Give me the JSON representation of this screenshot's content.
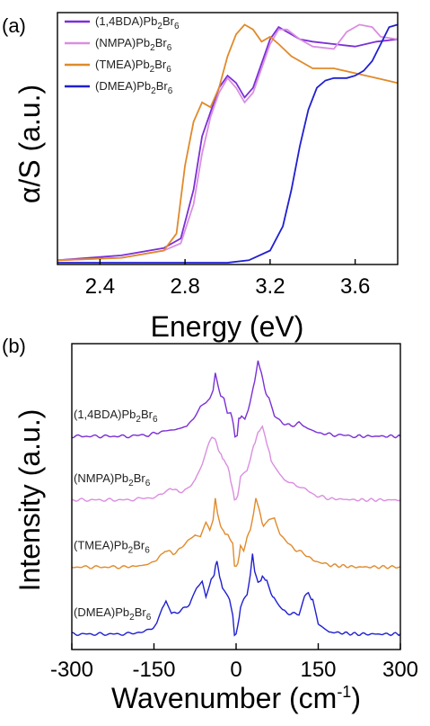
{
  "chart_data": [
    {
      "panel": "(a)",
      "type": "line",
      "xlabel": "Energy (eV)",
      "ylabel": "α/S (a.u.)",
      "xlim": [
        2.2,
        3.8
      ],
      "ylim": [
        0,
        1.0
      ],
      "xticks": [
        "2.4",
        "2.8",
        "3.2",
        "3.6"
      ],
      "xtick_values": [
        2.4,
        2.8,
        3.2,
        3.6
      ],
      "legend_position": "top-left",
      "series": [
        {
          "name": "(1,4BDA)Pb2Br6",
          "name_base": "(1,4BDA)Pb",
          "name_sub1": "2",
          "name_mid": "Br",
          "name_sub2": "6",
          "color": "#7b2fd6",
          "x": [
            2.2,
            2.5,
            2.7,
            2.78,
            2.84,
            2.88,
            2.92,
            2.96,
            3.0,
            3.04,
            3.08,
            3.12,
            3.16,
            3.2,
            3.24,
            3.28,
            3.34,
            3.4,
            3.5,
            3.6,
            3.7,
            3.8
          ],
          "y": [
            0.01,
            0.03,
            0.06,
            0.1,
            0.3,
            0.52,
            0.62,
            0.72,
            0.77,
            0.74,
            0.68,
            0.72,
            0.82,
            0.92,
            0.97,
            0.95,
            0.92,
            0.91,
            0.9,
            0.89,
            0.91,
            0.92
          ]
        },
        {
          "name": "(NMPA)Pb2Br6",
          "name_base": "(NMPA)Pb",
          "name_sub1": "2",
          "name_mid": "Br",
          "name_sub2": "6",
          "color": "#da8ee0",
          "x": [
            2.2,
            2.5,
            2.7,
            2.78,
            2.84,
            2.88,
            2.92,
            2.96,
            3.0,
            3.04,
            3.08,
            3.12,
            3.16,
            3.2,
            3.24,
            3.28,
            3.34,
            3.4,
            3.5,
            3.56,
            3.62,
            3.68,
            3.72,
            3.8
          ],
          "y": [
            0.01,
            0.02,
            0.05,
            0.08,
            0.24,
            0.45,
            0.6,
            0.7,
            0.76,
            0.72,
            0.66,
            0.7,
            0.8,
            0.9,
            0.96,
            0.96,
            0.92,
            0.89,
            0.88,
            0.95,
            0.98,
            0.97,
            0.93,
            0.92
          ]
        },
        {
          "name": "(TMEA)Pb2Br6",
          "name_base": "(TMEA)Pb",
          "name_sub1": "2",
          "name_mid": "Br",
          "name_sub2": "6",
          "color": "#e08a2a",
          "x": [
            2.2,
            2.5,
            2.7,
            2.76,
            2.8,
            2.84,
            2.88,
            2.92,
            2.96,
            3.0,
            3.04,
            3.08,
            3.12,
            3.16,
            3.2,
            3.24,
            3.3,
            3.4,
            3.5,
            3.6,
            3.7,
            3.8
          ],
          "y": [
            0.01,
            0.02,
            0.05,
            0.12,
            0.4,
            0.58,
            0.66,
            0.64,
            0.72,
            0.85,
            0.94,
            0.98,
            0.96,
            0.91,
            0.93,
            0.9,
            0.85,
            0.8,
            0.8,
            0.78,
            0.76,
            0.74
          ]
        },
        {
          "name": "(DMEA)Pb2Br6",
          "name_base": "(DMEA)Pb",
          "name_sub1": "2",
          "name_mid": "Br",
          "name_sub2": "6",
          "color": "#2020d0",
          "x": [
            2.2,
            2.8,
            3.0,
            3.1,
            3.2,
            3.26,
            3.3,
            3.34,
            3.38,
            3.42,
            3.46,
            3.5,
            3.56,
            3.6,
            3.64,
            3.68,
            3.72,
            3.76,
            3.8
          ],
          "y": [
            0.0,
            0.0,
            0.0,
            0.01,
            0.05,
            0.15,
            0.3,
            0.48,
            0.63,
            0.72,
            0.75,
            0.76,
            0.76,
            0.77,
            0.79,
            0.83,
            0.9,
            0.97,
            0.98
          ]
        }
      ]
    },
    {
      "panel": "(b)",
      "type": "line",
      "xlabel": "Wavenumber (cm-1)",
      "xlabel_main": "Wavenumber (cm",
      "xlabel_sup": "-1",
      "xlabel_close": ")",
      "ylabel": "Intensity (a.u.)",
      "xlim": [
        -300,
        300
      ],
      "ylim": [
        0,
        4.4
      ],
      "xticks": [
        "-300",
        "-150",
        "0",
        "150",
        "300"
      ],
      "xtick_values": [
        -300,
        -150,
        0,
        150,
        300
      ],
      "stacked": true,
      "series": [
        {
          "name": "(1,4BDA)Pb2Br6",
          "name_base": "(1,4BDA)Pb",
          "name_sub1": "2",
          "name_mid": "Br",
          "name_sub2": "6",
          "color": "#7b2fd6",
          "offset": 3.1,
          "x": [
            -300,
            -200,
            -160,
            -130,
            -110,
            -90,
            -75,
            -65,
            -55,
            -48,
            -42,
            -38,
            -33,
            -28,
            -22,
            -16,
            -10,
            -5,
            -2,
            0,
            2,
            5,
            10,
            16,
            22,
            28,
            34,
            40,
            46,
            52,
            60,
            70,
            85,
            100,
            115,
            130,
            150,
            180,
            220,
            300
          ],
          "y": [
            0,
            0,
            0.02,
            0.08,
            0.1,
            0.15,
            0.3,
            0.45,
            0.5,
            0.55,
            0.7,
            0.95,
            0.75,
            0.6,
            0.55,
            0.35,
            0.35,
            0.2,
            0,
            0,
            0,
            0.25,
            0.3,
            0.25,
            0.4,
            0.6,
            0.8,
            1.15,
            0.95,
            0.7,
            0.55,
            0.3,
            0.2,
            0.15,
            0.2,
            0.12,
            0.05,
            0.02,
            0,
            0
          ]
        },
        {
          "name": "(NMPA)Pb2Br6",
          "name_base": "(NMPA)Pb",
          "name_sub1": "2",
          "name_mid": "Br",
          "name_sub2": "6",
          "color": "#da8ee0",
          "offset": 2.15,
          "x": [
            -300,
            -200,
            -160,
            -135,
            -120,
            -105,
            -90,
            -75,
            -62,
            -52,
            -44,
            -38,
            -30,
            -22,
            -15,
            -10,
            -5,
            -3,
            0,
            3,
            8,
            14,
            20,
            26,
            32,
            40,
            48,
            56,
            64,
            74,
            88,
            100,
            112,
            125,
            140,
            170,
            220,
            300
          ],
          "y": [
            0,
            0,
            0.03,
            0.08,
            0.18,
            0.12,
            0.15,
            0.3,
            0.55,
            0.8,
            0.95,
            0.9,
            0.7,
            0.6,
            0.5,
            0.3,
            0.1,
            0,
            0,
            0.05,
            0.35,
            0.4,
            0.45,
            0.6,
            0.8,
            1.0,
            1.1,
            0.85,
            0.6,
            0.45,
            0.3,
            0.25,
            0.22,
            0.18,
            0.08,
            0.02,
            0,
            0
          ]
        },
        {
          "name": "(TMEA)Pb2Br6",
          "name_base": "(TMEA)Pb",
          "name_sub1": "2",
          "name_mid": "Br",
          "name_sub2": "6",
          "color": "#e08a2a",
          "offset": 1.15,
          "x": [
            -300,
            -200,
            -165,
            -145,
            -130,
            -115,
            -100,
            -88,
            -75,
            -65,
            -55,
            -48,
            -42,
            -38,
            -34,
            -28,
            -20,
            -12,
            -6,
            -3,
            0,
            3,
            8,
            14,
            20,
            26,
            32,
            36,
            42,
            50,
            60,
            70,
            80,
            95,
            110,
            125,
            140,
            170,
            220,
            300
          ],
          "y": [
            0,
            0,
            0.03,
            0.1,
            0.25,
            0.2,
            0.28,
            0.4,
            0.5,
            0.45,
            0.65,
            0.55,
            0.7,
            1.05,
            0.8,
            0.6,
            0.5,
            0.45,
            0.35,
            0,
            0,
            0.05,
            0.3,
            0.25,
            0.45,
            0.55,
            0.8,
            1.05,
            0.85,
            0.6,
            0.7,
            0.75,
            0.5,
            0.35,
            0.25,
            0.2,
            0.1,
            0.03,
            0,
            0
          ]
        },
        {
          "name": "(DMEA)Pb2Br6",
          "name_base": "(DMEA)Pb",
          "name_sub1": "2",
          "name_mid": "Br",
          "name_sub2": "6",
          "color": "#2020d0",
          "offset": 0.15,
          "x": [
            -300,
            -200,
            -160,
            -145,
            -135,
            -128,
            -118,
            -100,
            -85,
            -72,
            -62,
            -55,
            -48,
            -40,
            -35,
            -30,
            -25,
            -18,
            -12,
            -6,
            -3,
            0,
            3,
            8,
            14,
            20,
            26,
            30,
            34,
            40,
            48,
            56,
            64,
            72,
            85,
            100,
            115,
            125,
            132,
            140,
            150,
            170,
            220,
            300
          ],
          "y": [
            0,
            0,
            0.05,
            0.15,
            0.4,
            0.5,
            0.3,
            0.35,
            0.45,
            0.7,
            0.8,
            0.55,
            0.75,
            0.9,
            1.1,
            0.85,
            0.7,
            0.6,
            0.5,
            0.3,
            0,
            0,
            0.1,
            0.4,
            0.5,
            0.6,
            0.9,
            1.2,
            0.95,
            0.75,
            0.85,
            0.8,
            0.6,
            0.5,
            0.35,
            0.3,
            0.3,
            0.55,
            0.6,
            0.5,
            0.15,
            0.03,
            0,
            0
          ]
        }
      ]
    }
  ]
}
